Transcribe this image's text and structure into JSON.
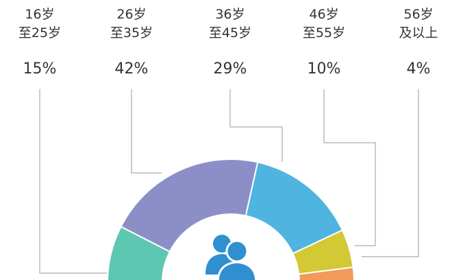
{
  "chart_data": {
    "type": "donut",
    "categories": [
      "16岁\n至25岁",
      "26岁\n至35岁",
      "36岁\n至45岁",
      "46岁\n至55岁",
      "56岁\n及以上"
    ],
    "values": [
      15,
      42,
      29,
      10,
      4
    ],
    "value_labels": [
      "15%",
      "42%",
      "29%",
      "10%",
      "4%"
    ],
    "colors": [
      "#5ec7b1",
      "#8c8fc7",
      "#4fb4e0",
      "#d3c935",
      "#f19a5c"
    ]
  }
}
